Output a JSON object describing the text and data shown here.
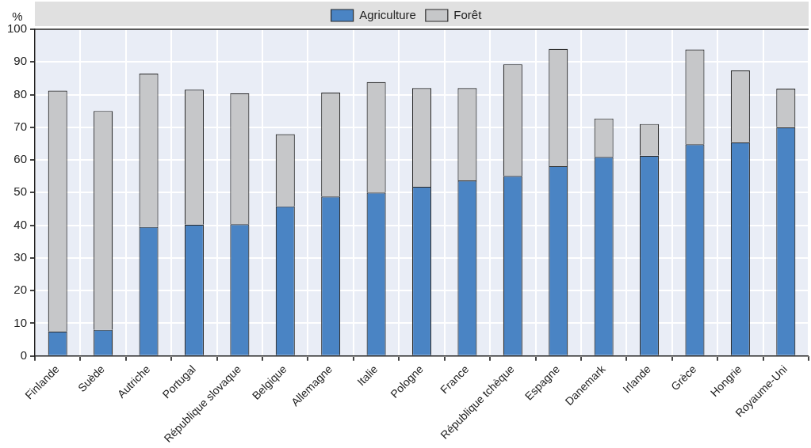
{
  "chart_data": {
    "type": "bar",
    "stacked": true,
    "ylabel": "%",
    "categories": [
      "Finlande",
      "Suède",
      "Autriche",
      "Portugal",
      "République slovaque",
      "Belgique",
      "Allemagne",
      "Italie",
      "Pologne",
      "France",
      "République tchèque",
      "Espagne",
      "Danemark",
      "Irlande",
      "Grèce",
      "Hongrie",
      "Royaume-Uni"
    ],
    "series": [
      {
        "name": "Agriculture",
        "color": "#4a84c4",
        "values": [
          7.5,
          8,
          39.5,
          40.2,
          40.3,
          45.8,
          48.8,
          50,
          51.8,
          53.7,
          55.1,
          58.1,
          60.9,
          61.3,
          64.8,
          65.4,
          70
        ]
      },
      {
        "name": "Forêt",
        "color": "#c6c7c9",
        "values": [
          73.7,
          67,
          46.9,
          41.3,
          40.1,
          22.1,
          31.8,
          33.8,
          30.2,
          28.3,
          34.2,
          35.9,
          11.8,
          9.7,
          29,
          22,
          11.8
        ]
      }
    ],
    "ylim": [
      0,
      100
    ],
    "yticks": [
      0,
      10,
      20,
      30,
      40,
      50,
      60,
      70,
      80,
      90,
      100
    ],
    "grid": true,
    "legend": "top"
  }
}
